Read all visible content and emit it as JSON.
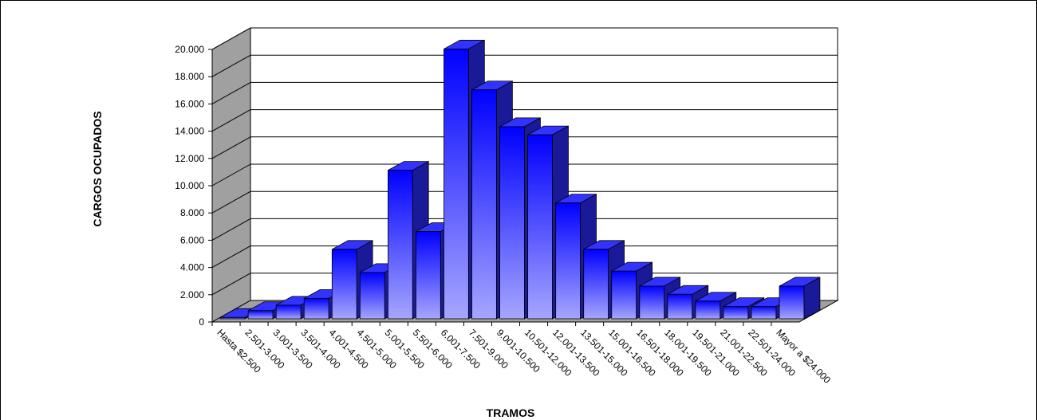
{
  "chart_data": {
    "type": "bar",
    "style": "3d-column",
    "title": "",
    "xlabel": "TRAMOS",
    "ylabel": "CARGOS OCUPADOS",
    "ylim": [
      0,
      20000
    ],
    "y_ticks": [
      "0",
      "2.000",
      "4.000",
      "6.000",
      "8.000",
      "10.000",
      "12.000",
      "14.000",
      "16.000",
      "18.000",
      "20.000"
    ],
    "y_tick_values": [
      0,
      2000,
      4000,
      6000,
      8000,
      10000,
      12000,
      14000,
      16000,
      18000,
      20000
    ],
    "grid": true,
    "legend": "none",
    "categories": [
      "Hasta $2.500",
      "2.501-3.000",
      "3.001-3.500",
      "3.501-4.000",
      "4.001-4.500",
      "4.501-5.000",
      "5.001-5.500",
      "5.501-6.000",
      "6.001-7.500",
      "7.501-9.000",
      "9.001-10.500",
      "10.501-12.000",
      "12.001-13.500",
      "13.501-15.000",
      "15.001-16.500",
      "16.501-18.000",
      "18.001-19.500",
      "19.501-21.000",
      "21.001-22.500",
      "22.501-24.000",
      "Mayor a $24.000"
    ],
    "values": [
      100,
      600,
      1000,
      1500,
      5100,
      3400,
      10900,
      6400,
      19800,
      16800,
      14100,
      13500,
      8500,
      5100,
      3500,
      2400,
      1800,
      1300,
      900,
      900,
      2400
    ],
    "colors": {
      "bar_front_top": "#0000ff",
      "bar_front_bottom": "#a6a6ff",
      "bar_side": "#1a1a99",
      "bar_top": "#3333ff",
      "wall": "#ffffff",
      "side_wall": "#a0a0a0",
      "floor": "#a0a0a0"
    }
  }
}
